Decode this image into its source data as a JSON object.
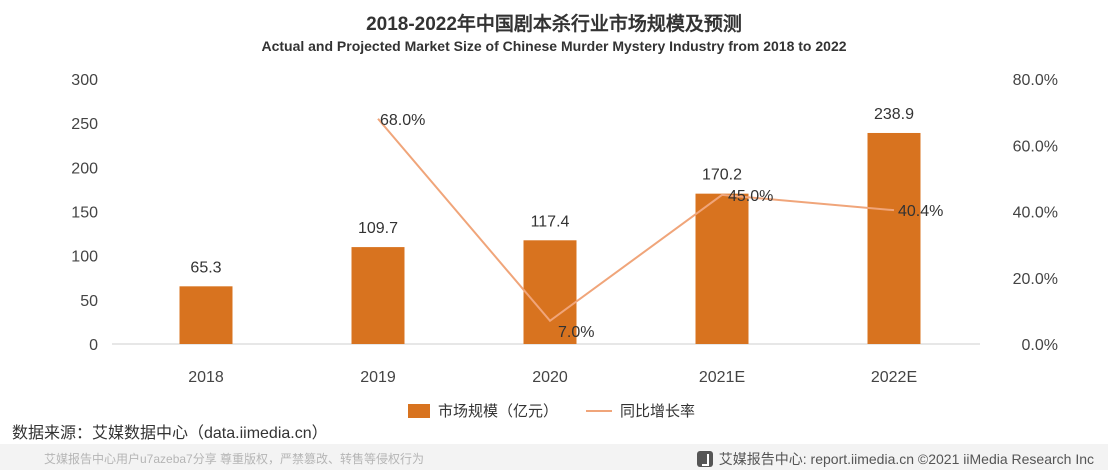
{
  "chart_data": {
    "type": "bar",
    "title": "2018-2022年中国剧本杀行业市场规模及预测",
    "subtitle": "Actual and Projected Market Size  of Chinese Murder Mystery Industry from 2018 to 2022",
    "categories": [
      "2018",
      "2019",
      "2020",
      "2021E",
      "2022E"
    ],
    "series": [
      {
        "name": "市场规模（亿元）",
        "type": "bar",
        "axis": "left",
        "values": [
          65.3,
          109.7,
          117.4,
          170.2,
          238.9
        ],
        "labels": [
          "65.3",
          "109.7",
          "117.4",
          "170.2",
          "238.9"
        ],
        "color": "#D8731F"
      },
      {
        "name": "同比增长率",
        "type": "line",
        "axis": "right",
        "values": [
          null,
          68.0,
          7.0,
          45.0,
          40.4
        ],
        "labels": [
          "",
          "68.0%",
          "7.0%",
          "45.0%",
          "40.4%"
        ],
        "color": "#F0A57A"
      }
    ],
    "left_axis": {
      "ylim": [
        0,
        300
      ],
      "ticks": [
        "0",
        "50",
        "100",
        "150",
        "200",
        "250",
        "300"
      ]
    },
    "right_axis": {
      "ylim": [
        0,
        80
      ],
      "ticks": [
        "0.0%",
        "20.0%",
        "40.0%",
        "60.0%",
        "80.0%"
      ]
    },
    "grid": false,
    "legend_position": "bottom"
  },
  "source_text": "数据来源：艾媒数据中心（data.iimedia.cn）",
  "footer": {
    "left_text": "艾媒报告中心用户u7azeba7分享 尊重版权，严禁篡改、转售等侵权行为",
    "right_text": "艾媒报告中心: report.iimedia.cn  ©2021  iiMedia Research  Inc"
  }
}
